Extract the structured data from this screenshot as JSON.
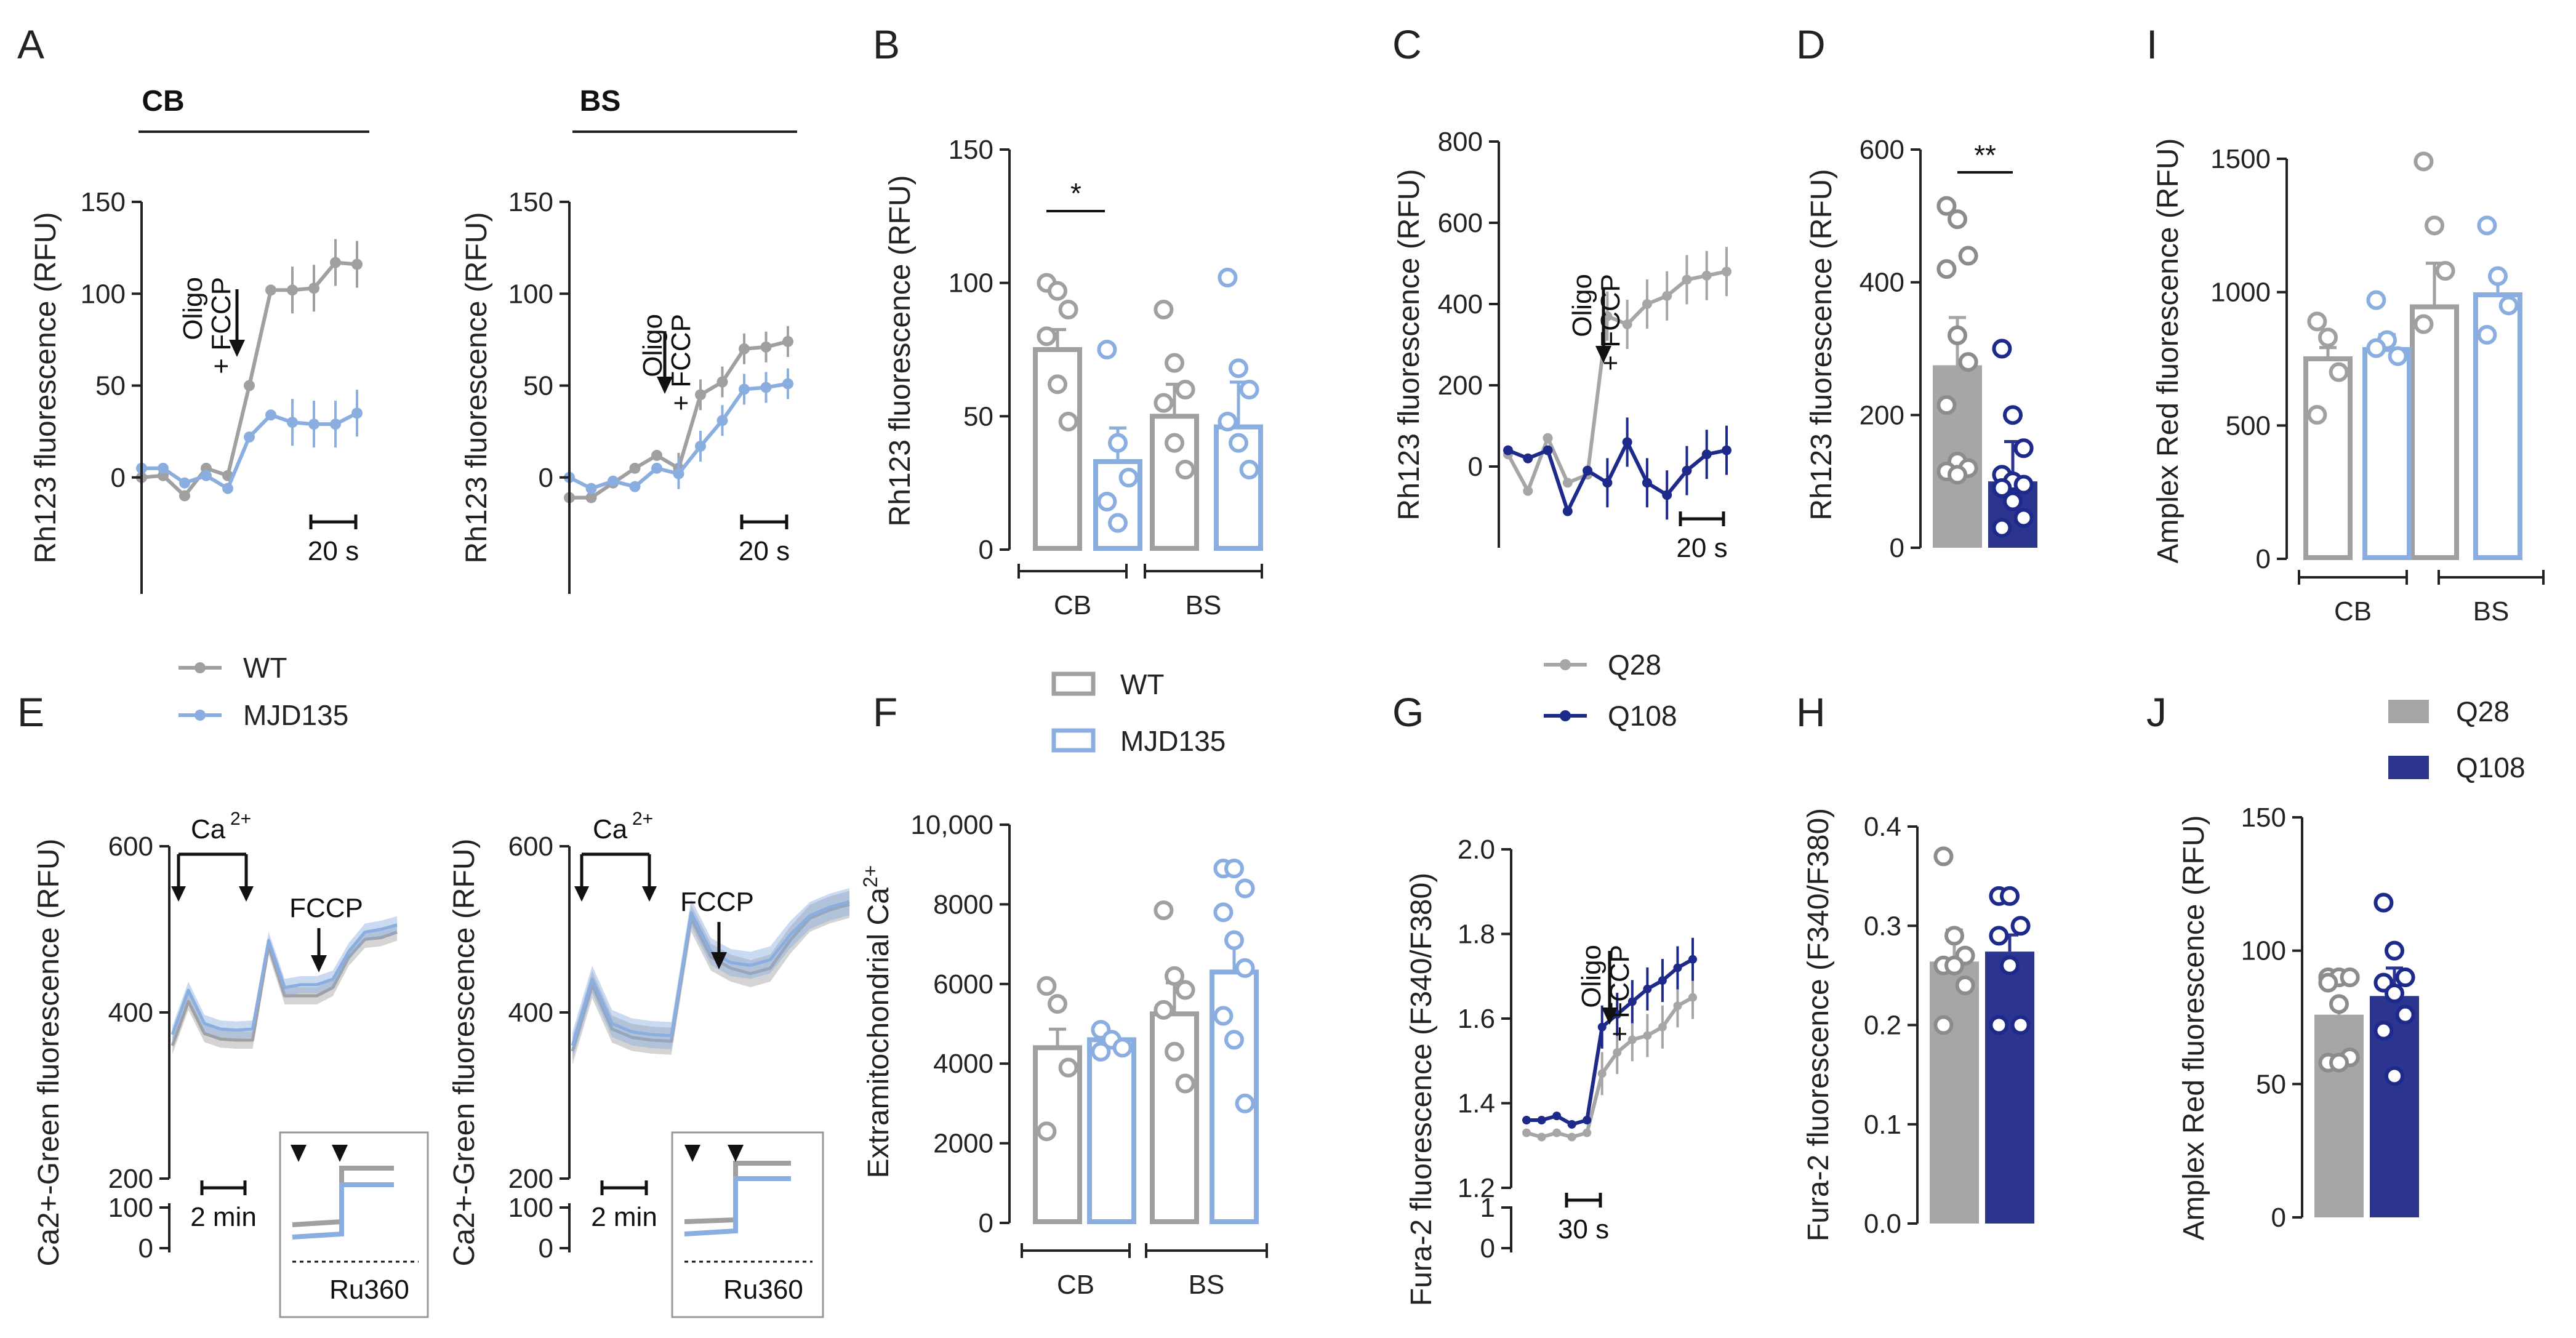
{
  "colors": {
    "wt": "#a0a0a0",
    "mjd": "#8aaee0",
    "q28": "#a6a6a6",
    "q108": "#2b3590",
    "q108_line": "#1d2a8a",
    "axis": "#222222"
  },
  "panel_labels": [
    "A",
    "B",
    "C",
    "D",
    "I",
    "E",
    "F",
    "G",
    "H",
    "J"
  ],
  "conditions": {
    "cb": "CB",
    "bs": "BS"
  },
  "legends": {
    "wt_mjd": [
      "WT",
      "MJD135"
    ],
    "q": [
      "Q28",
      "Q108"
    ]
  },
  "annotations": {
    "oligo": "Oligo",
    "fccp_plus": "+ FCCP",
    "fccp": "FCCP",
    "ca": "Ca",
    "ca_sup": "2+",
    "ru360": "Ru360",
    "scale_20s": "20 s",
    "scale_2min": "2 min",
    "scale_30s": "30 s",
    "sig_one": "*",
    "sig_two": "**"
  },
  "chart_data": [
    {
      "panel": "A",
      "type": "line",
      "title": "CB",
      "ylabel": "Rh123 fluorescence (RFU)",
      "ylim": [
        -50,
        150
      ],
      "yticks": [
        "0",
        "50",
        "100",
        "150"
      ],
      "series": [
        {
          "name": "WT",
          "values": [
            0,
            1,
            -10,
            5,
            1,
            50,
            102,
            102,
            103,
            117,
            116
          ]
        },
        {
          "name": "MJD135",
          "values": [
            5,
            5,
            -3,
            1,
            -6,
            22,
            34,
            30,
            29,
            29,
            35
          ]
        }
      ]
    },
    {
      "panel": "A2",
      "type": "line",
      "title": "BS",
      "ylabel": "Rh123 fluorescence (RFU)",
      "ylim": [
        -50,
        150
      ],
      "yticks": [
        "0",
        "50",
        "100",
        "150"
      ],
      "series": [
        {
          "name": "WT",
          "values": [
            -11,
            -11,
            -3,
            5,
            12,
            5,
            45,
            52,
            70,
            71,
            74
          ]
        },
        {
          "name": "MJD135",
          "values": [
            0,
            -6,
            -2,
            -5,
            5,
            2,
            17,
            31,
            48,
            49,
            51
          ]
        }
      ]
    },
    {
      "panel": "B",
      "type": "bar",
      "ylabel": "Rh123 fluorescence (RFU)",
      "ylim": [
        0,
        150
      ],
      "yticks": [
        "0",
        "50",
        "100",
        "150"
      ],
      "groups": [
        "CB",
        "BS"
      ],
      "series": [
        {
          "name": "WT",
          "values": [
            75,
            50
          ],
          "points": [
            [
              100,
              97,
              90,
              80,
              62,
              48
            ],
            [
              90,
              70,
              60,
              55,
              40,
              30
            ]
          ]
        },
        {
          "name": "MJD135",
          "values": [
            33,
            46
          ],
          "points": [
            [
              75,
              40,
              27,
              18,
              10
            ],
            [
              102,
              68,
              60,
              48,
              40,
              30
            ]
          ]
        }
      ],
      "significance": "*"
    },
    {
      "panel": "C",
      "type": "line",
      "ylabel": "Rh123 fluorescence (RFU)",
      "ylim": [
        -200,
        800
      ],
      "yticks": [
        "0",
        "200",
        "400",
        "600",
        "800"
      ],
      "series": [
        {
          "name": "Q28",
          "values": [
            30,
            -60,
            70,
            -40,
            -20,
            370,
            350,
            400,
            420,
            460,
            470,
            480
          ]
        },
        {
          "name": "Q108",
          "values": [
            40,
            20,
            40,
            -110,
            -10,
            -40,
            60,
            -40,
            -70,
            -10,
            30,
            40
          ]
        }
      ]
    },
    {
      "panel": "D",
      "type": "bar",
      "ylabel": "Rh123 fluorescence (RFU)",
      "ylim": [
        0,
        600
      ],
      "yticks": [
        "0",
        "200",
        "400",
        "600"
      ],
      "series": [
        {
          "name": "Q28",
          "values": [
            275
          ],
          "points": [
            [
              515,
              495,
              440,
              420,
              320,
              280,
              215,
              130,
              120,
              115,
              110
            ]
          ]
        },
        {
          "name": "Q108",
          "values": [
            100
          ],
          "points": [
            [
              300,
              200,
              150,
              110,
              100,
              95,
              90,
              70,
              45,
              30
            ]
          ]
        }
      ],
      "significance": "**"
    },
    {
      "panel": "I",
      "type": "bar",
      "ylabel": "Amplex Red fluorescence (RFU)",
      "ylim": [
        0,
        1500
      ],
      "yticks": [
        "0",
        "500",
        "1000",
        "1500"
      ],
      "groups": [
        "CB",
        "BS"
      ],
      "series": [
        {
          "name": "WT",
          "values": [
            750,
            945
          ],
          "points": [
            [
              890,
              830,
              700,
              540
            ],
            [
              1490,
              1250,
              1080,
              880
            ]
          ]
        },
        {
          "name": "MJD135",
          "values": [
            785,
            990
          ],
          "points": [
            [
              970,
              820,
              760,
              790
            ],
            [
              1250,
              1060,
              950,
              840
            ]
          ]
        }
      ]
    },
    {
      "panel": "E",
      "type": "line",
      "title": "CB",
      "ylabel": "Ca2+-Green fluorescence (RFU)",
      "ylim": [
        0,
        600
      ],
      "yticks": [
        "0",
        "100",
        "200",
        "400",
        "600"
      ],
      "series": [
        {
          "name": "WT",
          "values": [
            240,
            320,
            262,
            252,
            250,
            250,
            420,
            330,
            330,
            330,
            345,
            400,
            432,
            435,
            445
          ]
        },
        {
          "name": "MJD135",
          "values": [
            260,
            340,
            280,
            270,
            268,
            270,
            430,
            345,
            350,
            350,
            360,
            410,
            445,
            450,
            458
          ]
        }
      ]
    },
    {
      "panel": "E2",
      "type": "line",
      "title": "BS",
      "ylabel": "Ca2+-Green fluorescence (RFU)",
      "ylim": [
        0,
        600
      ],
      "yticks": [
        "0",
        "100",
        "200",
        "400",
        "600"
      ],
      "series": [
        {
          "name": "WT",
          "values": [
            230,
            350,
            270,
            255,
            250,
            248,
            470,
            400,
            380,
            370,
            380,
            430,
            470,
            485,
            495
          ]
        },
        {
          "name": "MJD135",
          "values": [
            240,
            360,
            280,
            265,
            260,
            258,
            480,
            410,
            390,
            385,
            395,
            440,
            475,
            490,
            500
          ]
        }
      ]
    },
    {
      "panel": "F",
      "type": "bar",
      "ylabel": "Extramitochondrial Ca2+",
      "ylim": [
        0,
        10000
      ],
      "yticks": [
        "0",
        "2000",
        "4000",
        "6000",
        "8000",
        "10,000"
      ],
      "groups": [
        "CB",
        "BS"
      ],
      "series": [
        {
          "name": "WT",
          "values": [
            4400,
            5250
          ],
          "points": [
            [
              5950,
              5500,
              3900,
              2300
            ],
            [
              7850,
              6200,
              5850,
              5350,
              4300,
              3500
            ]
          ]
        },
        {
          "name": "MJD135",
          "values": [
            4600,
            6300
          ],
          "points": [
            [
              4850,
              4600,
              4400,
              4300
            ],
            [
              8900,
              8900,
              8400,
              7800,
              7100,
              6400,
              5200,
              4600,
              3000
            ]
          ]
        }
      ]
    },
    {
      "panel": "G",
      "type": "line",
      "ylabel": "Fura-2 fluorescence (F340/F380)",
      "ylim": [
        1.2,
        2.0
      ],
      "yticks": [
        "1.2",
        "1.4",
        "1.6",
        "1.8",
        "2.0"
      ],
      "series": [
        {
          "name": "Q28",
          "values": [
            1.33,
            1.32,
            1.33,
            1.32,
            1.33,
            1.47,
            1.52,
            1.55,
            1.56,
            1.58,
            1.63,
            1.65
          ]
        },
        {
          "name": "Q108",
          "values": [
            1.36,
            1.36,
            1.37,
            1.35,
            1.36,
            1.58,
            1.61,
            1.64,
            1.67,
            1.69,
            1.72,
            1.74
          ]
        }
      ]
    },
    {
      "panel": "H",
      "type": "bar",
      "ylabel": "Fura-2 fluorescence (F340/F380)",
      "ylim": [
        0.0,
        0.4
      ],
      "yticks": [
        "0.0",
        "0.1",
        "0.2",
        "0.3",
        "0.4"
      ],
      "series": [
        {
          "name": "Q28",
          "values": [
            0.264
          ],
          "points": [
            [
              0.37,
              0.29,
              0.27,
              0.26,
              0.26,
              0.24,
              0.2
            ]
          ]
        },
        {
          "name": "Q108",
          "values": [
            0.274
          ],
          "points": [
            [
              0.33,
              0.33,
              0.3,
              0.29,
              0.26,
              0.2,
              0.2
            ]
          ]
        }
      ]
    },
    {
      "panel": "J",
      "type": "bar",
      "ylabel": "Amplex Red fluorescence (RFU)",
      "ylim": [
        0,
        150
      ],
      "yticks": [
        "0",
        "50",
        "100",
        "150"
      ],
      "series": [
        {
          "name": "Q28",
          "values": [
            76
          ],
          "points": [
            [
              90,
              90,
              90,
              88,
              80,
              60,
              58,
              58
            ]
          ]
        },
        {
          "name": "Q108",
          "values": [
            83
          ],
          "points": [
            [
              118,
              100,
              90,
              88,
              84,
              76,
              70,
              53
            ]
          ]
        }
      ]
    }
  ]
}
